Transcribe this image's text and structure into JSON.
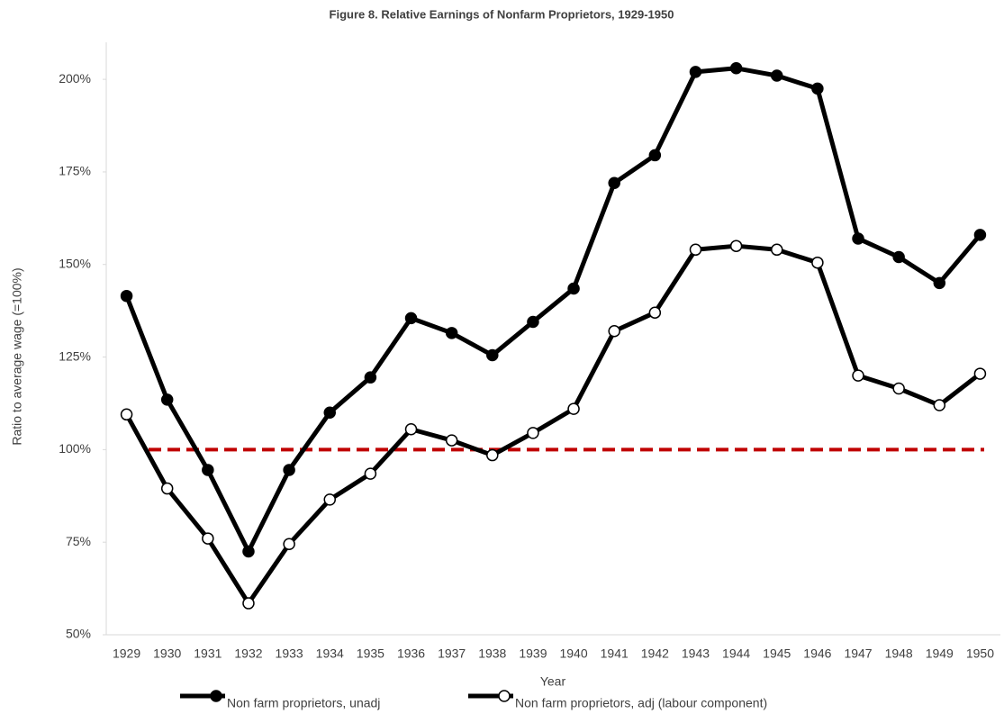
{
  "chart_data": {
    "type": "line",
    "title": "Figure 8. Relative Earnings of Nonfarm Proprietors, 1929-1950",
    "x_label": "Year",
    "y_label": "Ratio to average wage (=100%)",
    "categories": [
      "1929",
      "1930",
      "1931",
      "1932",
      "1933",
      "1934",
      "1935",
      "1936",
      "1937",
      "1938",
      "1939",
      "1940",
      "1941",
      "1942",
      "1943",
      "1944",
      "1945",
      "1946",
      "1947",
      "1948",
      "1949",
      "1950"
    ],
    "series": [
      {
        "name": "Non farm proprietors, unadj",
        "color": "#000000",
        "marker_fill": "#000000",
        "values": [
          141.5,
          113.5,
          94.5,
          72.5,
          94.5,
          110,
          119.5,
          135.5,
          131.5,
          125.5,
          134.5,
          143.5,
          172,
          179.5,
          202,
          203,
          201,
          197.5,
          157,
          152,
          145,
          158
        ]
      },
      {
        "name": "Non farm proprietors, adj (labour component)",
        "color": "#000000",
        "marker_fill": "#ffffff",
        "values": [
          109.5,
          89.5,
          76,
          58.5,
          74.5,
          86.5,
          93.5,
          105.5,
          102.5,
          98.5,
          104.5,
          111,
          132,
          137,
          154,
          155,
          154,
          150.5,
          120,
          116.5,
          112,
          120.5
        ]
      }
    ],
    "reference_line": {
      "value": 100,
      "color": "#c00000"
    },
    "ylim": [
      50,
      210
    ],
    "yticks": [
      {
        "value": 50,
        "label": "50%"
      },
      {
        "value": 75,
        "label": "75%"
      },
      {
        "value": 100,
        "label": "100%"
      },
      {
        "value": 125,
        "label": "125%"
      },
      {
        "value": 150,
        "label": "150%"
      },
      {
        "value": 175,
        "label": "175%"
      },
      {
        "value": 200,
        "label": "200%"
      }
    ],
    "grid": false,
    "legend": "bottom"
  }
}
